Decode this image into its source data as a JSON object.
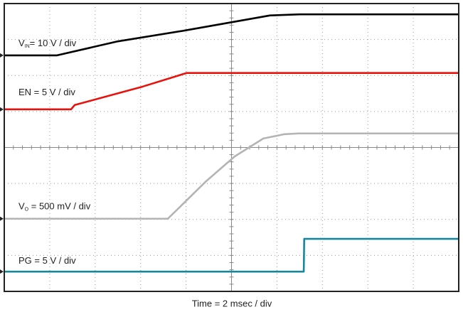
{
  "chart_data": {
    "type": "line",
    "x_label": "Time = 2 msec / div",
    "xlim": [
      0,
      10
    ],
    "ylim": [
      0,
      8
    ],
    "xticks": [
      1,
      2,
      3,
      4,
      5,
      6,
      7,
      8,
      9
    ],
    "yticks": [
      1,
      2,
      3,
      4,
      5,
      6,
      7
    ],
    "grid": true,
    "series": [
      {
        "name": [
          "V",
          "IN",
          "= 10 V / div"
        ],
        "color": "#000000",
        "x": [
          0,
          1.16,
          2.5,
          3.97,
          5.85,
          6.5,
          10
        ],
        "values": [
          6.56,
          6.56,
          6.95,
          7.25,
          7.67,
          7.7,
          7.7
        ]
      },
      {
        "name": [
          "EN = 5 V / div"
        ],
        "color": "#e8120c",
        "x": [
          0,
          1.47,
          1.55,
          3.04,
          4.01,
          10
        ],
        "values": [
          5.06,
          5.06,
          5.18,
          5.69,
          6.07,
          6.07
        ]
      },
      {
        "name": [
          "V",
          "O",
          " = 500 mV / div"
        ],
        "color": "#b4b4b4",
        "x": [
          0,
          3.6,
          4.44,
          5.07,
          5.7,
          6.17,
          6.48,
          10
        ],
        "values": [
          2.02,
          2.02,
          3.06,
          3.75,
          4.25,
          4.37,
          4.39,
          4.39
        ]
      },
      {
        "name": [
          "PG = 5 V / div"
        ],
        "color": "#17879a",
        "x": [
          0,
          6.59,
          6.6,
          10
        ],
        "values": [
          0.55,
          0.55,
          1.46,
          1.46
        ]
      }
    ]
  }
}
